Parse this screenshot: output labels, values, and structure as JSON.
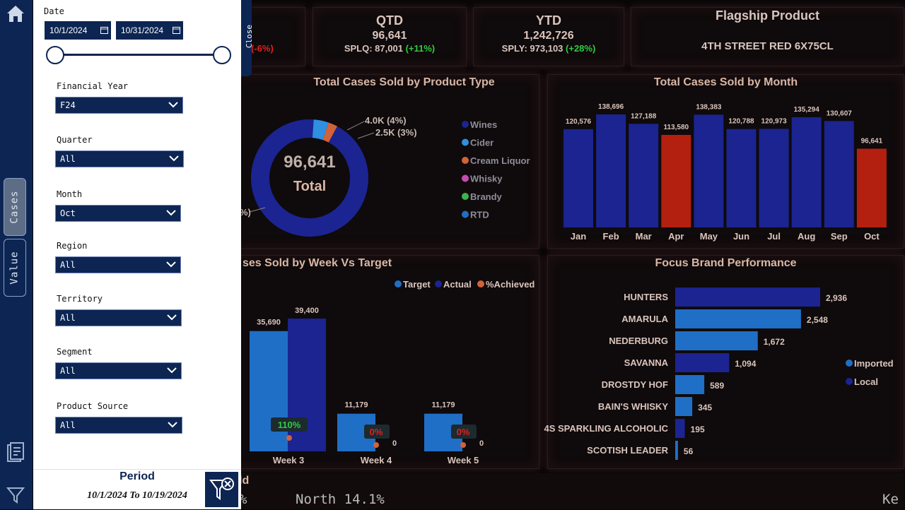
{
  "nav": {
    "tabs": [
      {
        "label": "Cases",
        "active": true
      },
      {
        "label": "Value",
        "active": false
      }
    ]
  },
  "kpis": {
    "mtd": {
      "delta": "(-6%)"
    },
    "qtd": {
      "title": "QTD",
      "value": "96,641",
      "compare": "SPLQ: 87,001",
      "delta": "(+11%)"
    },
    "ytd": {
      "title": "YTD",
      "value": "1,242,726",
      "compare": "SPLY: 973,103",
      "delta": "(+28%)"
    },
    "flagship": {
      "title": "Flagship Product",
      "value": "4TH STREET RED 6X75CL"
    }
  },
  "filter_panel": {
    "close_label": "Close",
    "date": {
      "label": "Date",
      "start": "10/1/2024",
      "end": "10/31/2024"
    },
    "filters": [
      {
        "label": "Financial Year",
        "value": "F24"
      },
      {
        "label": "Quarter",
        "value": "All"
      },
      {
        "label": "Month",
        "value": "Oct"
      },
      {
        "label": "Region",
        "value": "All"
      },
      {
        "label": "Territory",
        "value": "All"
      },
      {
        "label": "Segment",
        "value": "All"
      },
      {
        "label": "Product Source",
        "value": "All"
      }
    ],
    "period_label": "Period",
    "period_value": "10/1/2024 To 10/19/2024"
  },
  "bottom_strip": {
    "title_fragment": "ld",
    "ticker_left": "%",
    "ticker_main": "North 14.1%",
    "ticker_right": "Ke"
  },
  "colors": {
    "navy": "#0d2552",
    "bar_blue": "#1b2491",
    "bar_red": "#b3200f",
    "light_blue": "#1f6fc7",
    "orange": "#d2623a",
    "text": "#d9c5bd"
  },
  "chart_data": [
    {
      "type": "pie",
      "title": "Total Cases Sold by Product Type",
      "center_value": "96,641",
      "center_label": "Total",
      "legend": [
        {
          "name": "Wines",
          "color": "#1b2491"
        },
        {
          "name": "Cider",
          "color": "#2f8fe0"
        },
        {
          "name": "Cream Liquor",
          "color": "#d2623a"
        },
        {
          "name": "Whisky",
          "color": "#c64bb0"
        },
        {
          "name": "Brandy",
          "color": "#3bb54a"
        },
        {
          "name": "RTD",
          "color": "#1f6fc7"
        }
      ],
      "slices": [
        {
          "name": "Wines",
          "value": 90141
        },
        {
          "name": "Cider",
          "value": 4000,
          "label": "4.0K (4%)"
        },
        {
          "name": "Cream Liquor",
          "value": 2500,
          "label": "2.5K (3%)"
        }
      ],
      "hidden_label_fragment": "%)"
    },
    {
      "type": "bar",
      "title": "Total Cases Sold by Month",
      "categories": [
        "Jan",
        "Feb",
        "Mar",
        "Apr",
        "May",
        "Jun",
        "Jul",
        "Aug",
        "Sep",
        "Oct"
      ],
      "values": [
        120576,
        138696,
        127188,
        113580,
        138383,
        120788,
        120973,
        135294,
        130607,
        96641
      ],
      "labels": [
        "120,576",
        "138,696",
        "127,188",
        "113,580",
        "138,383",
        "120,788",
        "120,973",
        "135,294",
        "130,607",
        "96,641"
      ],
      "highlight": [
        "Apr",
        "Oct"
      ],
      "ylim": [
        0,
        150000
      ]
    },
    {
      "type": "bar",
      "title": "ses Sold by Week Vs Target",
      "legend": [
        "Target",
        "Actual",
        "%Achieved"
      ],
      "categories": [
        "Week 3",
        "Week 4",
        "Week 5"
      ],
      "series": [
        {
          "name": "Target",
          "values": [
            35690,
            11179,
            11179
          ],
          "labels": [
            "35,690",
            "11,179",
            "11,179"
          ]
        },
        {
          "name": "Actual",
          "values": [
            39400,
            0,
            0
          ],
          "labels": [
            "39,400",
            "0",
            "0"
          ]
        },
        {
          "name": "%Achieved",
          "values": [
            110,
            0,
            0
          ],
          "labels": [
            "110%",
            "0%",
            "0%"
          ]
        }
      ],
      "ylim": [
        0,
        45000
      ]
    },
    {
      "type": "bar",
      "orientation": "horizontal",
      "title": "Focus Brand Performance",
      "legend": [
        {
          "name": "Imported",
          "color": "#1f6fc7"
        },
        {
          "name": "Local",
          "color": "#1b2491"
        }
      ],
      "categories": [
        "HUNTERS",
        "AMARULA",
        "NEDERBURG",
        "SAVANNA",
        "DROSTDY HOF",
        "BAIN'S WHISKY",
        "4S SPARKLING ALCOHOLIC",
        "SCOTISH LEADER"
      ],
      "values": [
        2936,
        2548,
        1672,
        1094,
        589,
        345,
        195,
        56
      ],
      "labels": [
        "2,936",
        "2,548",
        "1,672",
        "1,094",
        "589",
        "345",
        "195",
        "56"
      ],
      "source": [
        "Local",
        "Imported",
        "Imported",
        "Local",
        "Imported",
        "Imported",
        "Local",
        "Imported"
      ],
      "xlim": [
        0,
        3000
      ]
    }
  ]
}
